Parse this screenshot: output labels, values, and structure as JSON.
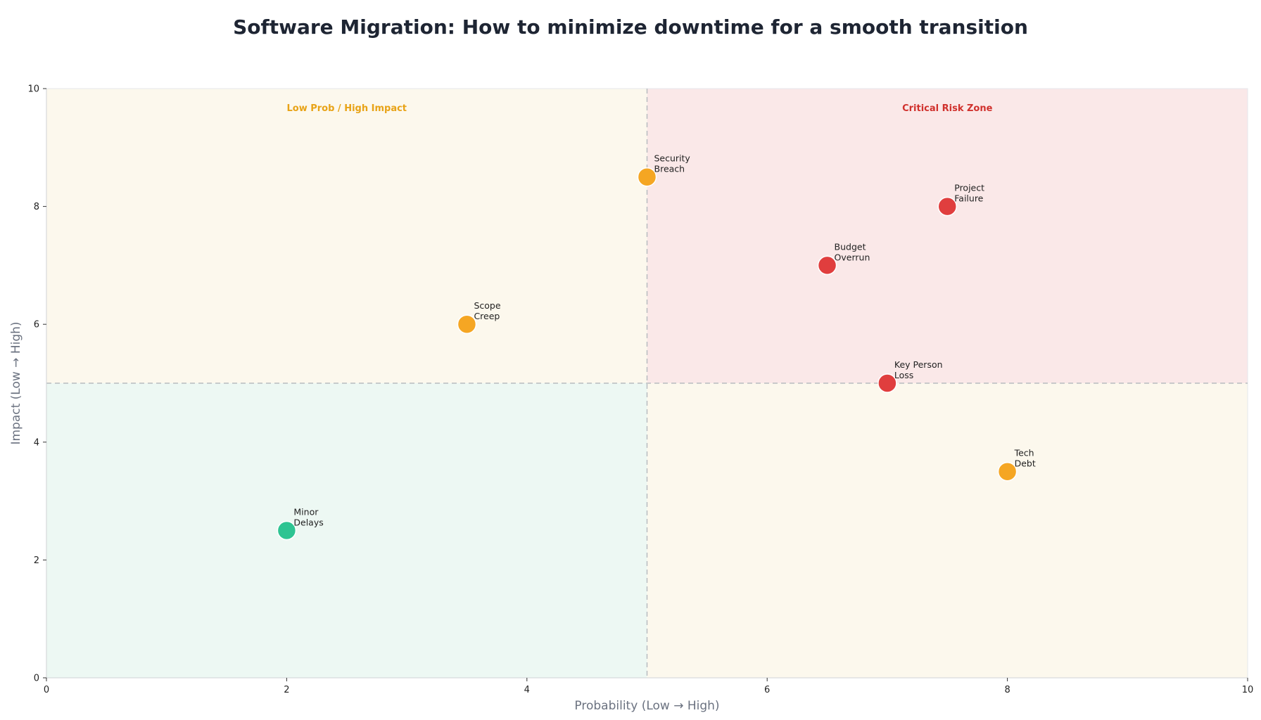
{
  "chart_data": {
    "type": "scatter",
    "title": "Software Migration: How to minimize downtime for a smooth transition",
    "xlabel": "Probability (Low → High)",
    "ylabel": "Impact (Low → High)",
    "xlim": [
      0,
      10
    ],
    "ylim": [
      0,
      10
    ],
    "xticks": [
      0,
      2,
      4,
      6,
      8,
      10
    ],
    "yticks": [
      0,
      2,
      4,
      6,
      8,
      10
    ],
    "grid": false,
    "threshold_x": 5,
    "threshold_y": 5,
    "quadrants": [
      {
        "id": "low-low",
        "label": "",
        "color": "#edf8f3"
      },
      {
        "id": "low-high",
        "label": "Low Prob / High Impact",
        "color": "#fcf8ed",
        "label_color": "#e8a317"
      },
      {
        "id": "high-high",
        "label": "Critical Risk Zone",
        "color": "#fae8e8",
        "label_color": "#d0312d"
      },
      {
        "id": "high-low",
        "label": "",
        "color": "#fcf8ed"
      }
    ],
    "points": [
      {
        "label_lines": [
          "Security",
          "Breach"
        ],
        "x": 5,
        "y": 8.5,
        "color": "#f5a623"
      },
      {
        "label_lines": [
          "Project",
          "Failure"
        ],
        "x": 7.5,
        "y": 8,
        "color": "#e03e3e"
      },
      {
        "label_lines": [
          "Budget",
          "Overrun"
        ],
        "x": 6.5,
        "y": 7,
        "color": "#e03e3e"
      },
      {
        "label_lines": [
          "Scope",
          "Creep"
        ],
        "x": 3.5,
        "y": 6,
        "color": "#f5a623"
      },
      {
        "label_lines": [
          "Key Person",
          "Loss"
        ],
        "x": 7,
        "y": 5,
        "color": "#e03e3e"
      },
      {
        "label_lines": [
          "Tech",
          "Debt"
        ],
        "x": 8,
        "y": 3.5,
        "color": "#f5a623"
      },
      {
        "label_lines": [
          "Minor",
          "Delays"
        ],
        "x": 2,
        "y": 2.5,
        "color": "#2ec492"
      }
    ]
  }
}
